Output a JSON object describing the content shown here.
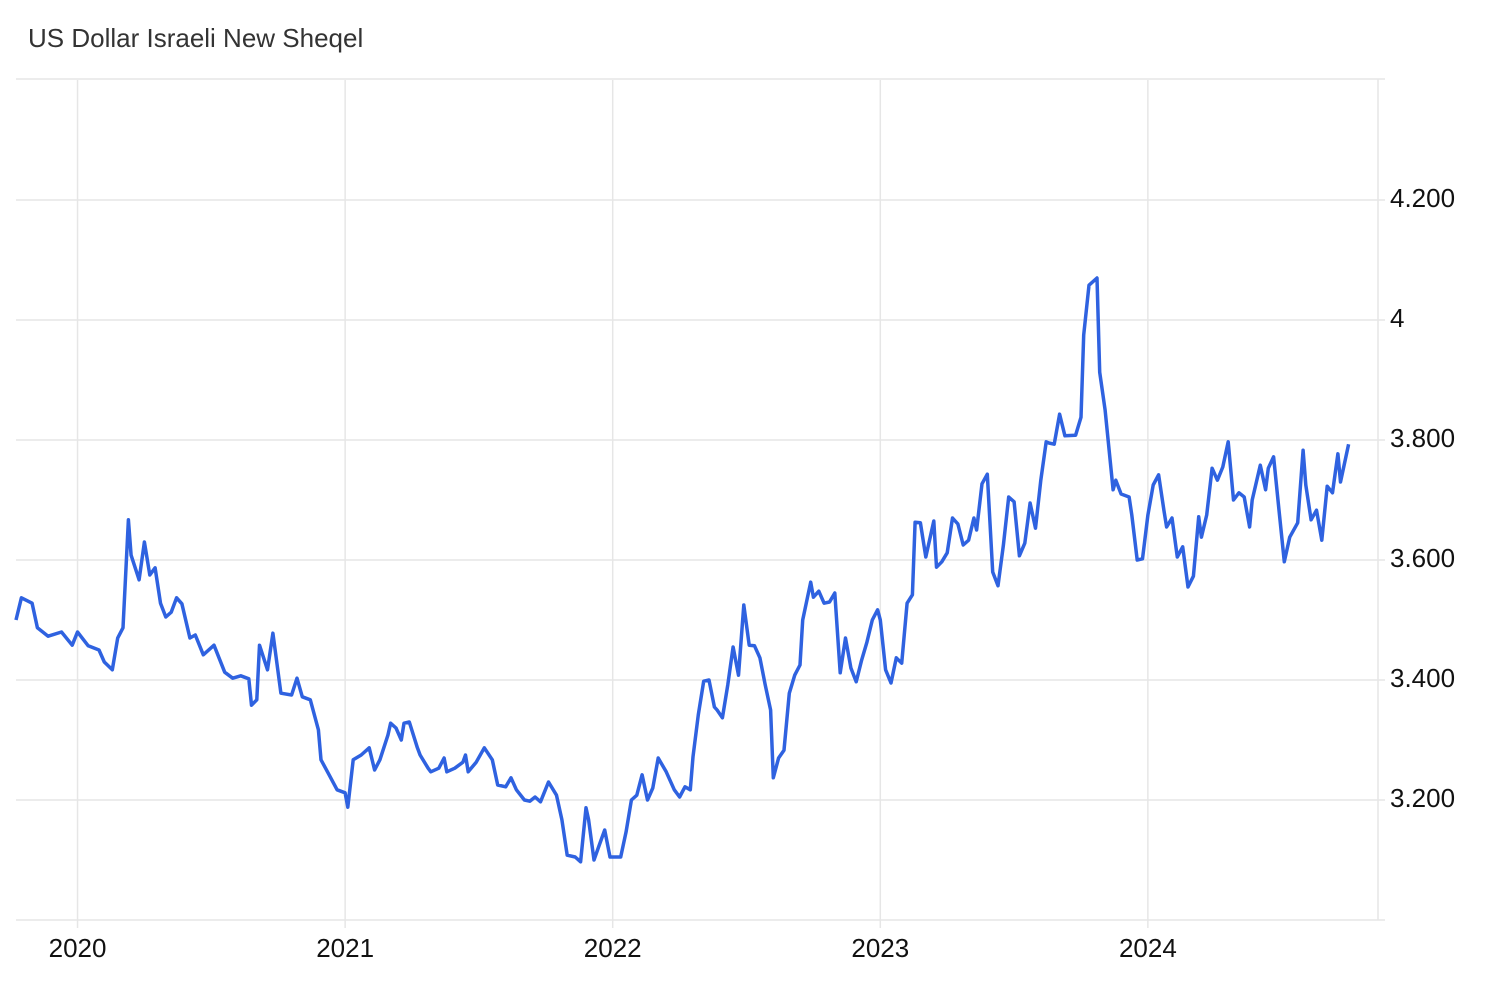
{
  "chart_data": {
    "type": "line",
    "title": "US Dollar Israeli New Sheqel",
    "color": "#2f62e0",
    "grid": true,
    "xlim": [
      2019.77,
      2024.86
    ],
    "xticks": [
      2020,
      2021,
      2022,
      2023,
      2024
    ],
    "ylim": [
      3.0,
      4.4
    ],
    "yticks": [
      {
        "value": 3.2,
        "label": "3.200"
      },
      {
        "value": 3.4,
        "label": "3.400"
      },
      {
        "value": 3.6,
        "label": "3.600"
      },
      {
        "value": 3.8,
        "label": "3.800"
      },
      4,
      {
        "value": 4.2,
        "label": "4.200"
      }
    ],
    "x": [
      2019.77,
      2019.79,
      2019.83,
      2019.85,
      2019.89,
      2019.94,
      2019.98,
      2020.0,
      2020.04,
      2020.08,
      2020.1,
      2020.13,
      2020.15,
      2020.17,
      2020.19,
      2020.2,
      2020.23,
      2020.25,
      2020.27,
      2020.29,
      2020.31,
      2020.33,
      2020.35,
      2020.37,
      2020.39,
      2020.42,
      2020.44,
      2020.47,
      2020.51,
      2020.55,
      2020.58,
      2020.61,
      2020.64,
      2020.65,
      2020.67,
      2020.68,
      2020.71,
      2020.73,
      2020.76,
      2020.8,
      2020.82,
      2020.84,
      2020.87,
      2020.9,
      2020.91,
      2020.94,
      2020.97,
      2021.0,
      2021.01,
      2021.03,
      2021.06,
      2021.09,
      2021.11,
      2021.13,
      2021.16,
      2021.17,
      2021.19,
      2021.21,
      2021.22,
      2021.24,
      2021.27,
      2021.28,
      2021.31,
      2021.32,
      2021.35,
      2021.37,
      2021.38,
      2021.41,
      2021.44,
      2021.45,
      2021.46,
      2021.49,
      2021.52,
      2021.55,
      2021.57,
      2021.6,
      2021.62,
      2021.64,
      2021.67,
      2021.69,
      2021.71,
      2021.73,
      2021.76,
      2021.79,
      2021.81,
      2021.83,
      2021.86,
      2021.88,
      2021.9,
      2021.91,
      2021.93,
      2021.95,
      2021.97,
      2021.99,
      2022.03,
      2022.05,
      2022.07,
      2022.09,
      2022.11,
      2022.13,
      2022.15,
      2022.17,
      2022.2,
      2022.23,
      2022.25,
      2022.27,
      2022.29,
      2022.3,
      2022.32,
      2022.34,
      2022.36,
      2022.38,
      2022.39,
      2022.41,
      2022.43,
      2022.45,
      2022.47,
      2022.49,
      2022.51,
      2022.53,
      2022.55,
      2022.57,
      2022.59,
      2022.6,
      2022.62,
      2022.64,
      2022.66,
      2022.68,
      2022.7,
      2022.71,
      2022.74,
      2022.75,
      2022.77,
      2022.79,
      2022.81,
      2022.83,
      2022.85,
      2022.87,
      2022.89,
      2022.91,
      2022.93,
      2022.95,
      2022.97,
      2022.99,
      2023.0,
      2023.02,
      2023.04,
      2023.06,
      2023.08,
      2023.1,
      2023.12,
      2023.13,
      2023.15,
      2023.17,
      2023.2,
      2023.21,
      2023.23,
      2023.25,
      2023.27,
      2023.29,
      2023.31,
      2023.33,
      2023.35,
      2023.36,
      2023.38,
      2023.4,
      2023.42,
      2023.44,
      2023.46,
      2023.48,
      2023.5,
      2023.52,
      2023.54,
      2023.56,
      2023.58,
      2023.6,
      2023.62,
      2023.63,
      2023.65,
      2023.67,
      2023.69,
      2023.73,
      2023.75,
      2023.76,
      2023.78,
      2023.81,
      2023.82,
      2023.84,
      2023.87,
      2023.88,
      2023.9,
      2023.93,
      2023.94,
      2023.96,
      2023.98,
      2024.0,
      2024.02,
      2024.04,
      2024.06,
      2024.07,
      2024.09,
      2024.11,
      2024.13,
      2024.15,
      2024.17,
      2024.19,
      2024.2,
      2024.22,
      2024.24,
      2024.26,
      2024.28,
      2024.3,
      2024.32,
      2024.34,
      2024.36,
      2024.38,
      2024.39,
      2024.42,
      2024.44,
      2024.45,
      2024.47,
      2024.49,
      2024.51,
      2024.53,
      2024.56,
      2024.58,
      2024.59,
      2024.61,
      2024.63,
      2024.65,
      2024.67,
      2024.69,
      2024.71,
      2024.72,
      2024.75
    ],
    "values": [
      3.5,
      3.537,
      3.528,
      3.487,
      3.473,
      3.48,
      3.458,
      3.48,
      3.457,
      3.45,
      3.43,
      3.417,
      3.47,
      3.487,
      3.667,
      3.608,
      3.567,
      3.63,
      3.575,
      3.587,
      3.528,
      3.505,
      3.513,
      3.537,
      3.527,
      3.47,
      3.475,
      3.442,
      3.458,
      3.413,
      3.403,
      3.407,
      3.402,
      3.358,
      3.367,
      3.458,
      3.417,
      3.478,
      3.378,
      3.375,
      3.403,
      3.372,
      3.367,
      3.317,
      3.267,
      3.242,
      3.217,
      3.212,
      3.188,
      3.267,
      3.275,
      3.287,
      3.25,
      3.267,
      3.308,
      3.328,
      3.32,
      3.3,
      3.328,
      3.33,
      3.287,
      3.275,
      3.253,
      3.247,
      3.253,
      3.27,
      3.247,
      3.253,
      3.263,
      3.275,
      3.247,
      3.263,
      3.287,
      3.267,
      3.225,
      3.222,
      3.237,
      3.217,
      3.2,
      3.198,
      3.205,
      3.197,
      3.23,
      3.208,
      3.167,
      3.108,
      3.105,
      3.097,
      3.187,
      3.167,
      3.1,
      3.125,
      3.15,
      3.105,
      3.105,
      3.147,
      3.2,
      3.208,
      3.242,
      3.2,
      3.22,
      3.27,
      3.247,
      3.217,
      3.205,
      3.222,
      3.217,
      3.272,
      3.342,
      3.398,
      3.4,
      3.355,
      3.35,
      3.337,
      3.392,
      3.455,
      3.408,
      3.525,
      3.458,
      3.457,
      3.437,
      3.392,
      3.35,
      3.237,
      3.27,
      3.283,
      3.378,
      3.408,
      3.425,
      3.5,
      3.563,
      3.538,
      3.548,
      3.528,
      3.53,
      3.545,
      3.412,
      3.47,
      3.42,
      3.397,
      3.433,
      3.463,
      3.5,
      3.517,
      3.5,
      3.417,
      3.395,
      3.437,
      3.428,
      3.528,
      3.542,
      3.663,
      3.662,
      3.605,
      3.665,
      3.588,
      3.597,
      3.612,
      3.67,
      3.66,
      3.625,
      3.633,
      3.67,
      3.65,
      3.727,
      3.743,
      3.58,
      3.557,
      3.625,
      3.705,
      3.697,
      3.607,
      3.628,
      3.695,
      3.653,
      3.733,
      3.797,
      3.795,
      3.793,
      3.843,
      3.807,
      3.808,
      3.838,
      3.975,
      4.058,
      4.07,
      3.913,
      3.85,
      3.717,
      3.733,
      3.71,
      3.705,
      3.675,
      3.6,
      3.602,
      3.675,
      3.725,
      3.742,
      3.683,
      3.655,
      3.67,
      3.605,
      3.622,
      3.555,
      3.573,
      3.672,
      3.638,
      3.675,
      3.753,
      3.733,
      3.755,
      3.797,
      3.7,
      3.712,
      3.705,
      3.655,
      3.7,
      3.758,
      3.717,
      3.753,
      3.772,
      3.683,
      3.597,
      3.638,
      3.662,
      3.783,
      3.725,
      3.667,
      3.683,
      3.633,
      3.723,
      3.712,
      3.777,
      3.73,
      3.793
    ]
  }
}
